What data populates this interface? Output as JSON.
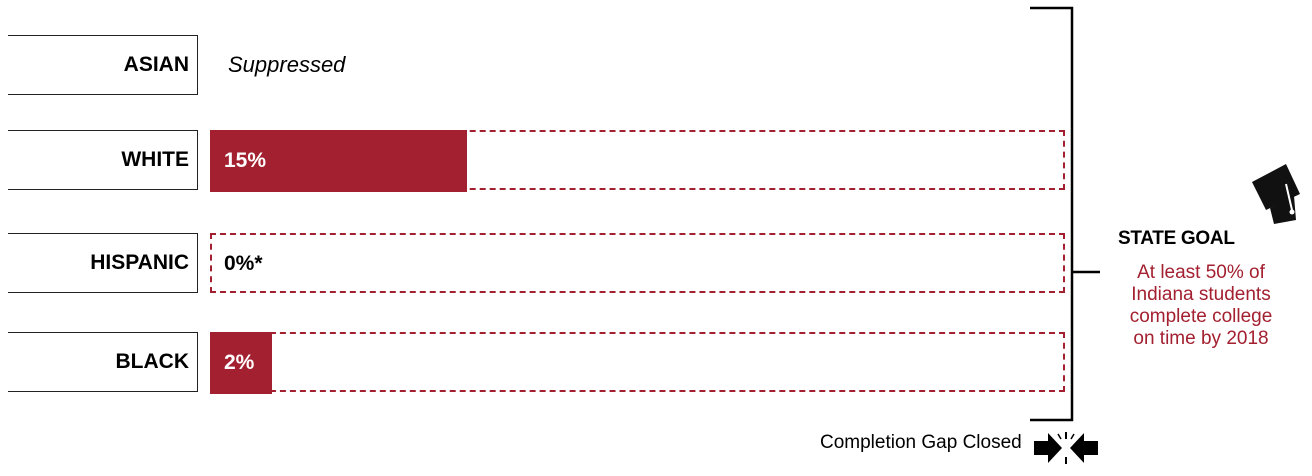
{
  "chart_data": {
    "type": "bar",
    "orientation": "horizontal",
    "categories": [
      "ASIAN",
      "WHITE",
      "HISPANIC",
      "BLACK"
    ],
    "values": [
      null,
      15,
      0,
      2
    ],
    "value_labels": [
      "Suppressed",
      "15%",
      "0%*",
      "2%"
    ],
    "goal_value": 50,
    "xlim": [
      0,
      50
    ],
    "colors": {
      "bar": "#a32030",
      "goal_outline": "#a32030"
    }
  },
  "goal": {
    "title": "STATE GOAL",
    "text_lines": [
      "At least 50% of",
      "Indiana students",
      "complete college",
      "on time by 2018"
    ]
  },
  "footer": {
    "gap_label": "Completion Gap Closed"
  },
  "icons": {
    "goal": "graduation-cap-icon",
    "gap": "converging-arrows-icon"
  }
}
